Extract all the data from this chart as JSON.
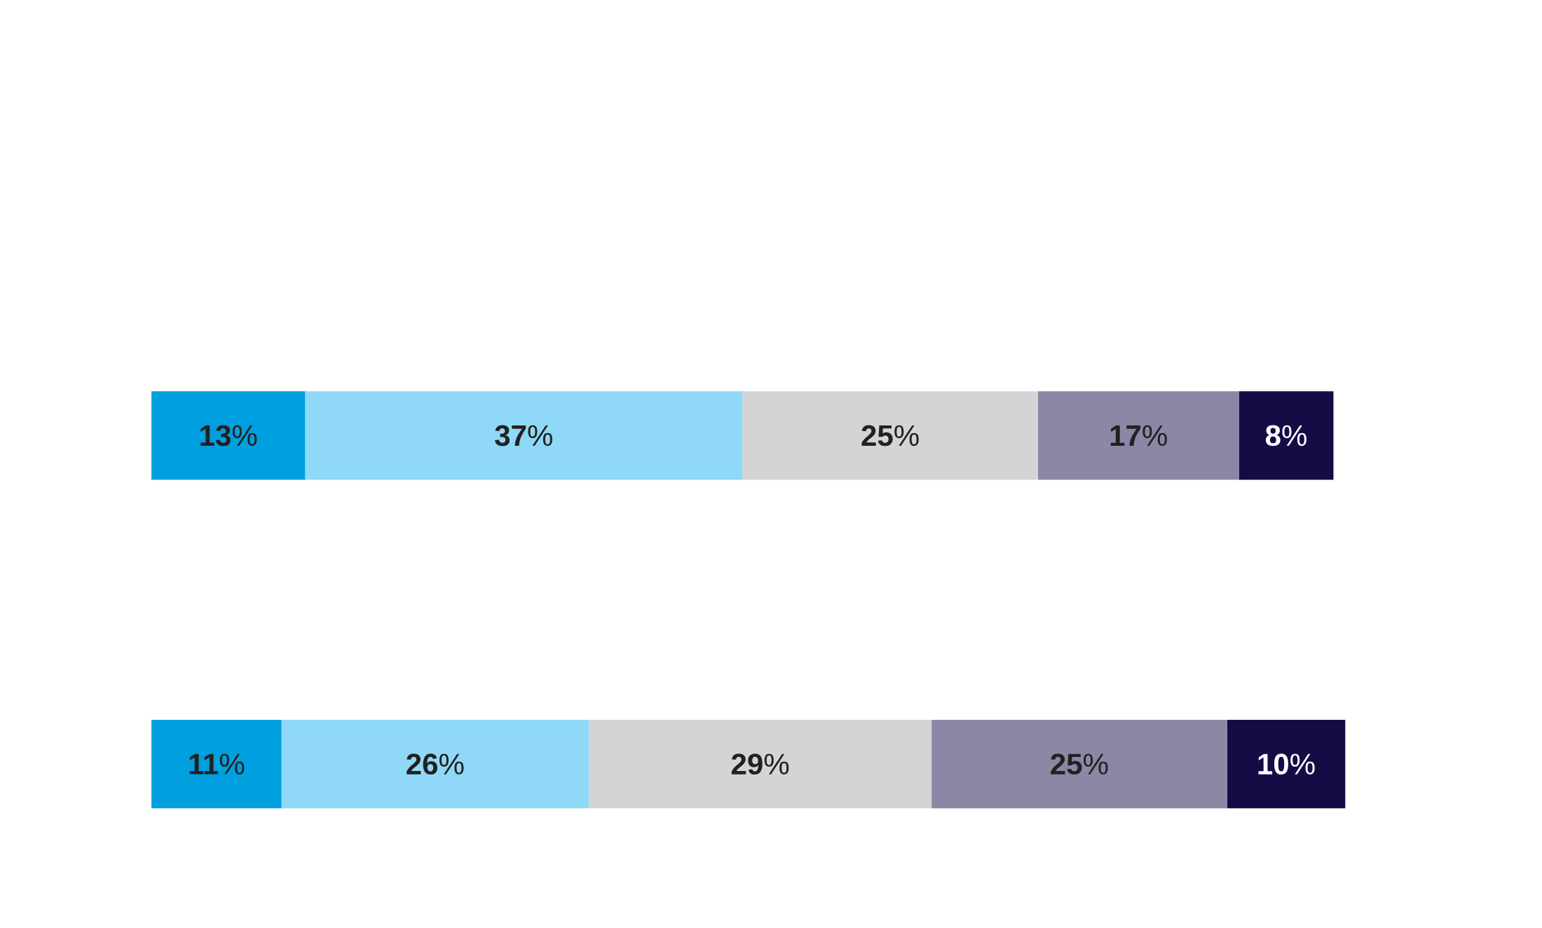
{
  "chart_data": {
    "type": "bar",
    "orientation": "horizontal",
    "stacked": true,
    "categories": [
      null,
      null
    ],
    "series": [
      {
        "color": "#009fdf",
        "values": [
          13,
          11
        ],
        "value_labels": [
          "**13**%",
          "**11**%"
        ]
      },
      {
        "color": "#8fd8f7",
        "values": [
          37,
          26
        ],
        "value_labels": [
          "**37**%",
          "**26**%"
        ]
      },
      {
        "color": "#d3d4d6",
        "values": [
          25,
          29
        ],
        "value_labels": [
          "**25**%",
          "**29**%"
        ]
      },
      {
        "color": "#8b87a5",
        "values": [
          17,
          25
        ],
        "value_labels": [
          "**17**%",
          "**25**%"
        ]
      },
      {
        "color": "#150c45",
        "values": [
          8,
          10
        ],
        "value_labels": [
          "**8**%",
          "**10**%"
        ]
      }
    ]
  }
}
